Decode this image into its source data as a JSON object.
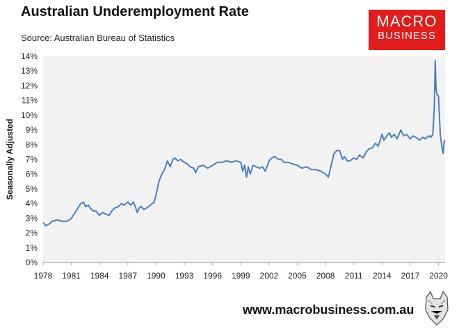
{
  "header": {
    "title": "Australian Underemployment Rate",
    "source": "Source: Australian Bureau of Statistics"
  },
  "logo": {
    "top": "MACRO",
    "bottom": "BUSINESS"
  },
  "footer": {
    "url": "www.macrobusiness.com.au"
  },
  "colors": {
    "line": "#4a7ebf",
    "plot_background": "#f2f2f2",
    "logo_red": "#e21b1b"
  },
  "icons": {
    "mascot": "wolf-mascot-icon"
  },
  "chart_data": {
    "type": "line",
    "title": "Australian Underemployment Rate",
    "xlabel": "",
    "ylabel": "Seasonally Adjusted",
    "xlim": [
      1978.0,
      2020.7
    ],
    "ylim": [
      0,
      14
    ],
    "y_ticks": [
      "0%",
      "1%",
      "2%",
      "3%",
      "4%",
      "5%",
      "6%",
      "7%",
      "8%",
      "9%",
      "10%",
      "11%",
      "12%",
      "13%",
      "14%"
    ],
    "x_ticks": [
      "1978",
      "1981",
      "1984",
      "1987",
      "1990",
      "1993",
      "1996",
      "1999",
      "2002",
      "2005",
      "2008",
      "2011",
      "2014",
      "2017",
      "2020"
    ],
    "grid": false,
    "legend": false,
    "series": [
      {
        "x": [
          1978.0,
          1978.3,
          1978.6,
          1979.0,
          1979.5,
          1980.0,
          1980.5,
          1980.8,
          1981.0,
          1981.3,
          1981.6,
          1982.0,
          1982.3,
          1982.5,
          1982.8,
          1983.0,
          1983.3,
          1983.6,
          1984.0,
          1984.3,
          1984.6,
          1985.0,
          1985.3,
          1985.6,
          1986.0,
          1986.3,
          1986.6,
          1987.0,
          1987.3,
          1987.6,
          1987.9,
          1988.0,
          1988.2,
          1988.4,
          1988.7,
          1989.0,
          1989.4,
          1989.8,
          1990.0,
          1990.3,
          1990.6,
          1990.9,
          1991.2,
          1991.5,
          1991.8,
          1992.0,
          1992.3,
          1992.6,
          1993.0,
          1993.3,
          1993.6,
          1994.0,
          1994.2,
          1994.5,
          1995.0,
          1995.5,
          1996.0,
          1996.5,
          1997.0,
          1997.5,
          1998.0,
          1998.5,
          1999.0,
          1999.2,
          1999.4,
          1999.6,
          1999.8,
          2000.0,
          2000.3,
          2000.6,
          2001.0,
          2001.3,
          2001.6,
          2002.0,
          2002.3,
          2002.6,
          2003.0,
          2003.3,
          2003.6,
          2004.0,
          2004.5,
          2005.0,
          2005.5,
          2006.0,
          2006.5,
          2007.0,
          2007.5,
          2008.0,
          2008.3,
          2008.6,
          2008.9,
          2009.2,
          2009.5,
          2009.8,
          2010.0,
          2010.3,
          2010.6,
          2011.0,
          2011.3,
          2011.6,
          2012.0,
          2012.3,
          2012.6,
          2013.0,
          2013.3,
          2013.6,
          2014.0,
          2014.2,
          2014.5,
          2014.8,
          2015.0,
          2015.3,
          2015.6,
          2016.0,
          2016.3,
          2016.6,
          2017.0,
          2017.3,
          2017.6,
          2018.0,
          2018.3,
          2018.6,
          2019.0,
          2019.2,
          2019.4,
          2019.55,
          2019.65,
          2019.75,
          2019.85,
          2020.0,
          2020.2,
          2020.4,
          2020.5,
          2020.6,
          2020.7
        ],
        "values": [
          2.7,
          2.5,
          2.6,
          2.8,
          2.9,
          2.8,
          2.8,
          2.9,
          3.0,
          3.3,
          3.6,
          4.0,
          4.1,
          3.8,
          3.9,
          3.7,
          3.5,
          3.5,
          3.2,
          3.4,
          3.3,
          3.2,
          3.5,
          3.7,
          3.8,
          4.0,
          3.9,
          4.1,
          3.9,
          4.1,
          3.6,
          3.4,
          3.7,
          3.8,
          3.6,
          3.7,
          3.9,
          4.1,
          4.6,
          5.5,
          6.0,
          6.3,
          6.9,
          6.5,
          7.0,
          7.1,
          6.9,
          7.0,
          6.8,
          6.7,
          6.5,
          6.4,
          6.1,
          6.5,
          6.6,
          6.4,
          6.6,
          6.8,
          6.8,
          6.9,
          6.8,
          6.9,
          6.8,
          6.2,
          6.6,
          5.8,
          6.5,
          6.0,
          6.6,
          6.5,
          6.4,
          6.5,
          6.2,
          6.9,
          7.1,
          7.2,
          7.0,
          7.0,
          6.8,
          6.8,
          6.7,
          6.6,
          6.4,
          6.5,
          6.3,
          6.3,
          6.2,
          6.0,
          5.8,
          6.6,
          7.4,
          7.6,
          7.6,
          7.0,
          7.2,
          6.9,
          6.9,
          7.1,
          7.0,
          7.3,
          7.1,
          7.5,
          7.7,
          7.8,
          8.1,
          7.9,
          8.7,
          8.3,
          8.6,
          8.8,
          8.5,
          8.7,
          8.4,
          9.0,
          8.6,
          8.7,
          8.4,
          8.6,
          8.5,
          8.3,
          8.5,
          8.4,
          8.6,
          8.5,
          8.7,
          10.5,
          13.7,
          11.7,
          11.4,
          11.3,
          8.6,
          7.7,
          7.4,
          8.2,
          8.3
        ]
      }
    ]
  }
}
